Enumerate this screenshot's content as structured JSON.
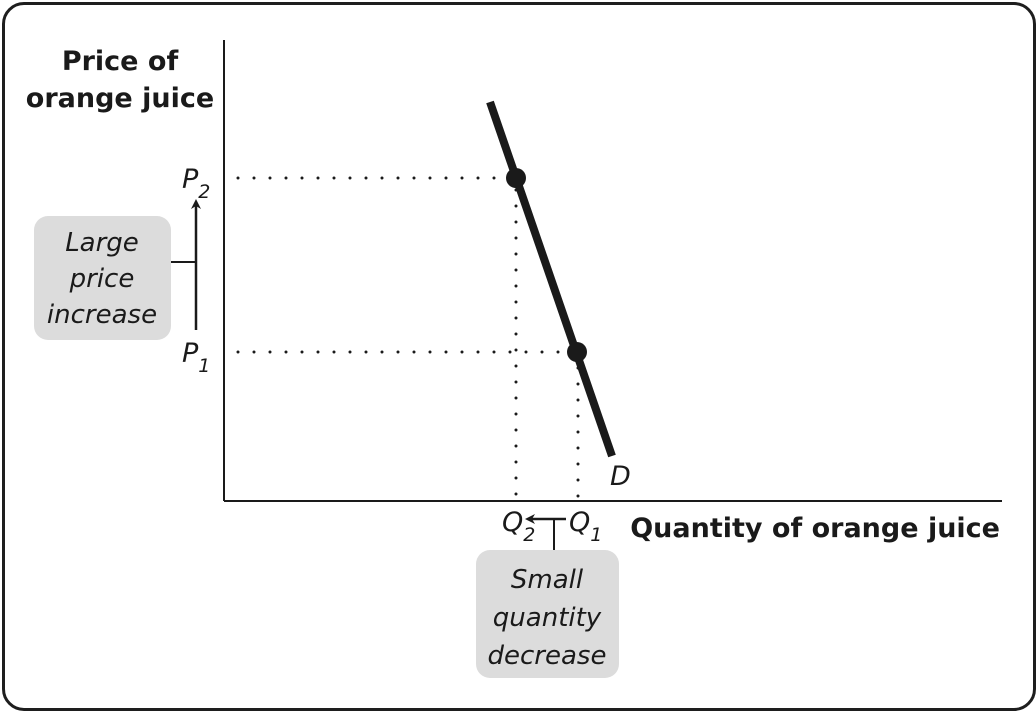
{
  "axes": {
    "y_title": [
      "Price of",
      "orange juice"
    ],
    "x_title": "Quantity of orange juice"
  },
  "curve": {
    "label": "D"
  },
  "prices": [
    {
      "letter": "P",
      "sub": "2"
    },
    {
      "letter": "P",
      "sub": "1"
    }
  ],
  "quantities": [
    {
      "letter": "Q",
      "sub": "2"
    },
    {
      "letter": "Q",
      "sub": "1"
    }
  ],
  "annotations": {
    "price_change": [
      "Large",
      "price",
      "increase"
    ],
    "quantity_change": [
      "Small",
      "quantity",
      "decrease"
    ]
  },
  "colors": {
    "line": "#1a1a1a",
    "box_fill": "#dcdcdc"
  }
}
